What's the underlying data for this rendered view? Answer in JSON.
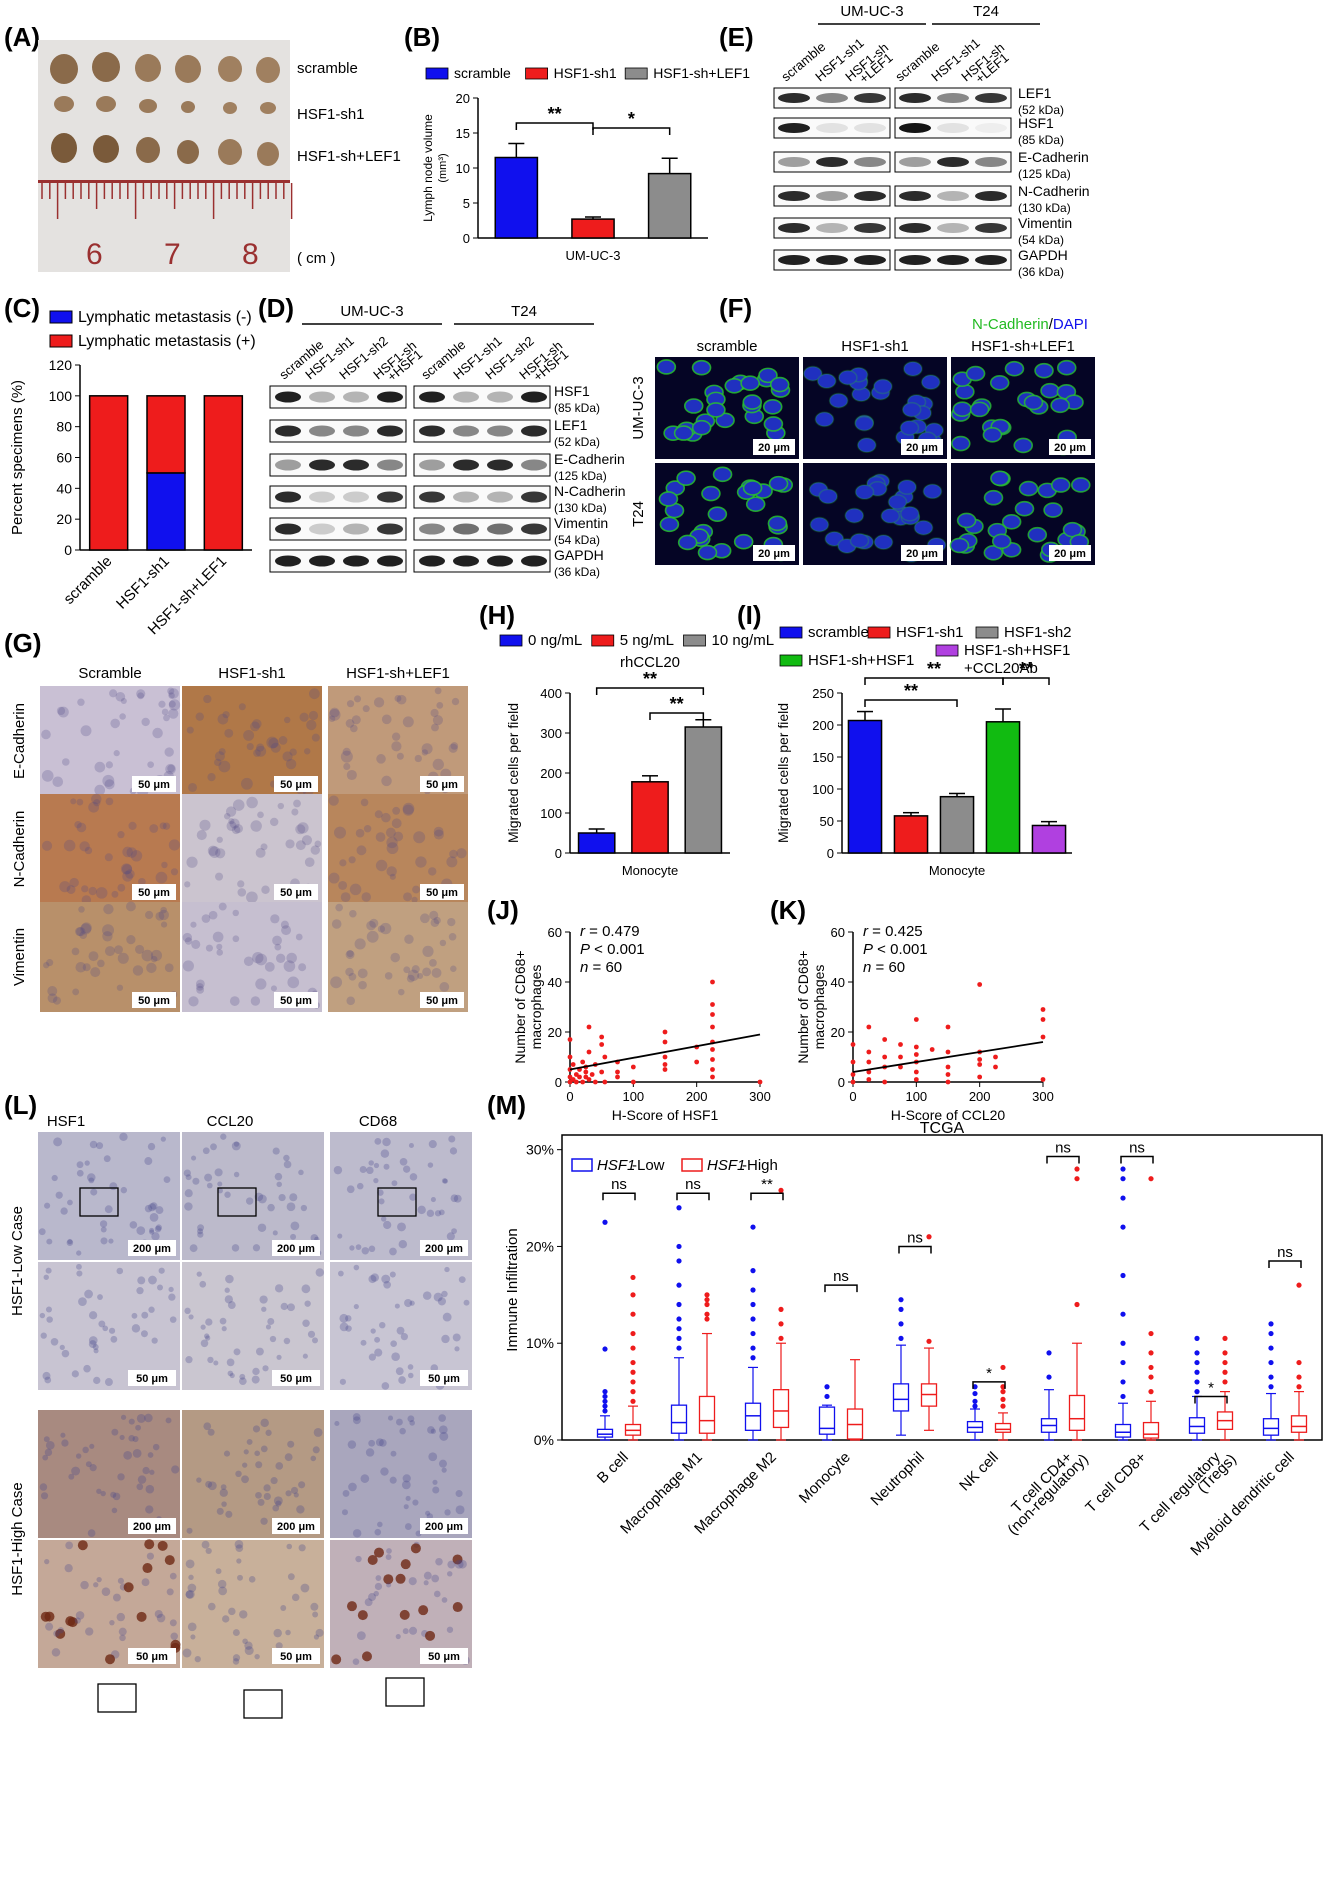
{
  "panel_labels": {
    "A": "(A)",
    "B": "(B)",
    "C": "(C)",
    "D": "(D)",
    "E": "(E)",
    "F": "(F)",
    "G": "(G)",
    "H": "(H)",
    "I": "(I)",
    "J": "(J)",
    "K": "(K)",
    "L": "(L)",
    "M": "(M)"
  },
  "panelA": {
    "rows": [
      "scramble",
      "HSF1-sh1",
      "HSF1-sh+LEF1"
    ],
    "ruler_numbers": [
      "6",
      "7",
      "8"
    ],
    "unit": "( cm )"
  },
  "colors": {
    "blue": "#1010ee",
    "red": "#ee1c1c",
    "gray": "#8c8c8c",
    "green": "#11bb11",
    "purple": "#b040e0"
  },
  "panelE": {
    "groups": [
      "UM-UC-3",
      "T24"
    ],
    "lanes": [
      "scramble",
      "HSF1-sh1",
      "HSF1-sh\n+LEF1",
      "scramble",
      "HSF1-sh1",
      "HSF1-sh\n+LEF1"
    ],
    "bands": [
      [
        "LEF1",
        "(52 kDa)"
      ],
      [
        "HSF1",
        "(85 kDa)"
      ],
      [
        "E-Cadherin",
        "(125 kDa)"
      ],
      [
        "N-Cadherin",
        "(130 kDa)"
      ],
      [
        "Vimentin",
        "(54 kDa)"
      ],
      [
        "GAPDH",
        "(36 kDa)"
      ]
    ]
  },
  "panelD": {
    "groups": [
      "UM-UC-3",
      "T24"
    ],
    "lanes": [
      "scramble",
      "HSF1-sh1",
      "HSF1-sh2",
      "HSF1-sh\n+HSF1",
      "scramble",
      "HSF1-sh1",
      "HSF1-sh2",
      "HSF1-sh\n+HSF1"
    ],
    "bands": [
      [
        "HSF1",
        "(85 kDa)"
      ],
      [
        "LEF1",
        "(52 kDa)"
      ],
      [
        "E-Cadherin",
        "(125 kDa)"
      ],
      [
        "N-Cadherin",
        "(130 kDa)"
      ],
      [
        "Vimentin",
        "(54 kDa)"
      ],
      [
        "GAPDH",
        "(36 kDa)"
      ]
    ]
  },
  "panelF": {
    "title_green": "N-Cadherin",
    "title_sep": "/",
    "title_blue": "DAPI",
    "cols": [
      "scramble",
      "HSF1-sh1",
      "HSF1-sh+LEF1"
    ],
    "rows": [
      "UM-UC-3",
      "T24"
    ],
    "scale": "20 μm"
  },
  "panelG": {
    "cols": [
      "Scramble",
      "HSF1-sh1",
      "HSF1-sh+LEF1"
    ],
    "rows": [
      "E-Cadherin",
      "N-Cadherin",
      "Vimentin"
    ],
    "scale": "50 μm"
  },
  "panelL": {
    "cols": [
      "HSF1",
      "CCL20",
      "CD68"
    ],
    "rows": [
      "HSF1-Low Case",
      "HSF1-High Case"
    ],
    "scale_low": "200 μm",
    "scale_high": "50 μm"
  },
  "chart_data": [
    {
      "id": "B",
      "type": "bar",
      "legend": [
        "scramble",
        "HSF1-sh1",
        "HSF1-sh+LEF1"
      ],
      "categories": [
        "scramble",
        "HSF1-sh1",
        "HSF1-sh+LEF1"
      ],
      "values": [
        11.5,
        2.7,
        9.2
      ],
      "errors": [
        2.0,
        0.3,
        2.2
      ],
      "xlabel": "UM-UC-3",
      "ylabel": "Lymph node volume",
      "ylabel2": "(mm³)",
      "ylim": [
        0,
        20
      ],
      "yticks": [
        0,
        5,
        10,
        15,
        20
      ],
      "significance": [
        {
          "pair": [
            0,
            1
          ],
          "label": "**"
        },
        {
          "pair": [
            1,
            2
          ],
          "label": "*"
        }
      ]
    },
    {
      "id": "C",
      "type": "bar",
      "stacked": true,
      "legend": [
        "Lymphatic metastasis (-)",
        "Lymphatic metastasis (+)"
      ],
      "categories": [
        "scramble",
        "HSF1-sh1",
        "HSF1-sh+LEF1"
      ],
      "series": [
        {
          "name": "Lymphatic metastasis (-)",
          "values": [
            0,
            50,
            0
          ]
        },
        {
          "name": "Lymphatic metastasis (+)",
          "values": [
            100,
            50,
            100
          ]
        }
      ],
      "ylabel": "Percent specimens (%)",
      "ylim": [
        0,
        120
      ],
      "yticks": [
        0,
        20,
        40,
        60,
        80,
        100,
        120
      ]
    },
    {
      "id": "H",
      "type": "bar",
      "legend": [
        "0 ng/mL",
        "5 ng/mL",
        "10 ng/mL"
      ],
      "subtitle": "rhCCL20",
      "categories": [
        "0 ng/mL",
        "5 ng/mL",
        "10 ng/mL"
      ],
      "values": [
        50,
        178,
        315
      ],
      "errors": [
        10,
        15,
        18
      ],
      "xlabel": "Monocyte",
      "ylabel": "Migrated cells per field",
      "ylim": [
        0,
        400
      ],
      "yticks": [
        0,
        100,
        200,
        300,
        400
      ],
      "significance": [
        {
          "pair": [
            0,
            2
          ],
          "label": "**"
        },
        {
          "pair": [
            1,
            2
          ],
          "label": "**"
        }
      ]
    },
    {
      "id": "I",
      "type": "bar",
      "legend": [
        "scramble",
        "HSF1-sh1",
        "HSF1-sh2",
        "HSF1-sh+HSF1",
        "HSF1-sh+HSF1",
        "+CCL20Ab"
      ],
      "categories": [
        "scramble",
        "HSF1-sh1",
        "HSF1-sh2",
        "HSF1-sh+HSF1",
        "HSF1-sh+HSF1+CCL20Ab"
      ],
      "values": [
        207,
        58,
        88,
        205,
        43
      ],
      "errors": [
        14,
        5,
        5,
        20,
        6
      ],
      "xlabel": "Monocyte",
      "ylabel": "Migrated cells per field",
      "ylim": [
        0,
        250
      ],
      "yticks": [
        0,
        50,
        100,
        150,
        200,
        250
      ],
      "significance": [
        {
          "pair": [
            0,
            2
          ],
          "label": "**"
        },
        {
          "pair": [
            0,
            3
          ],
          "label": "**"
        },
        {
          "pair": [
            3,
            4
          ],
          "label": "**"
        }
      ]
    },
    {
      "id": "J",
      "type": "scatter",
      "stats": {
        "r_label": "r",
        "r": " = 0.479",
        "p_label": "P",
        "p": " < 0.001",
        "n_label": "n",
        "n": " = 60"
      },
      "xlabel": "H-Score of HSF1",
      "ylabel": "Number of CD68+",
      "ylabel2": "macrophages",
      "xlim": [
        0,
        300
      ],
      "ylim": [
        0,
        60
      ],
      "xticks": [
        0,
        100,
        200,
        300
      ],
      "yticks": [
        0,
        20,
        40,
        60
      ],
      "points": [
        [
          0,
          17
        ],
        [
          0,
          10
        ],
        [
          0,
          5
        ],
        [
          0,
          2
        ],
        [
          0,
          0
        ],
        [
          5,
          1
        ],
        [
          5,
          7
        ],
        [
          10,
          3
        ],
        [
          10,
          0
        ],
        [
          15,
          2
        ],
        [
          15,
          5
        ],
        [
          20,
          8
        ],
        [
          20,
          0
        ],
        [
          25,
          4
        ],
        [
          25,
          2
        ],
        [
          25,
          6
        ],
        [
          30,
          1
        ],
        [
          30,
          22
        ],
        [
          30,
          12
        ],
        [
          35,
          3
        ],
        [
          40,
          7
        ],
        [
          40,
          0
        ],
        [
          50,
          18
        ],
        [
          50,
          15
        ],
        [
          50,
          4
        ],
        [
          55,
          10
        ],
        [
          55,
          0
        ],
        [
          75,
          8
        ],
        [
          75,
          4
        ],
        [
          75,
          2
        ],
        [
          100,
          0
        ],
        [
          100,
          6
        ],
        [
          150,
          20
        ],
        [
          150,
          16
        ],
        [
          150,
          10
        ],
        [
          150,
          7
        ],
        [
          150,
          5
        ],
        [
          200,
          14
        ],
        [
          200,
          8
        ],
        [
          225,
          40
        ],
        [
          225,
          31
        ],
        [
          225,
          27
        ],
        [
          225,
          22
        ],
        [
          225,
          16
        ],
        [
          225,
          13
        ],
        [
          225,
          9
        ],
        [
          225,
          5
        ],
        [
          225,
          2
        ],
        [
          300,
          0
        ]
      ],
      "fit": [
        [
          0,
          5
        ],
        [
          300,
          19
        ]
      ]
    },
    {
      "id": "K",
      "type": "scatter",
      "stats": {
        "r_label": "r",
        "r": " = 0.425",
        "p_label": "P",
        "p": " < 0.001",
        "n_label": "n",
        "n": " = 60"
      },
      "xlabel": "H-Score of CCL20",
      "ylabel": "Number of CD68+",
      "ylabel2": "macrophages",
      "xlim": [
        0,
        300
      ],
      "ylim": [
        0,
        60
      ],
      "xticks": [
        0,
        100,
        200,
        300
      ],
      "yticks": [
        0,
        20,
        40,
        60
      ],
      "points": [
        [
          0,
          15
        ],
        [
          0,
          8
        ],
        [
          0,
          3
        ],
        [
          0,
          0
        ],
        [
          25,
          22
        ],
        [
          25,
          12
        ],
        [
          25,
          8
        ],
        [
          25,
          4
        ],
        [
          25,
          1
        ],
        [
          50,
          17
        ],
        [
          50,
          10
        ],
        [
          50,
          6
        ],
        [
          50,
          0
        ],
        [
          75,
          15
        ],
        [
          75,
          10
        ],
        [
          75,
          6
        ],
        [
          100,
          25
        ],
        [
          100,
          14
        ],
        [
          100,
          11
        ],
        [
          100,
          8
        ],
        [
          100,
          4
        ],
        [
          100,
          1
        ],
        [
          125,
          13
        ],
        [
          150,
          22
        ],
        [
          150,
          12
        ],
        [
          150,
          6
        ],
        [
          150,
          3
        ],
        [
          150,
          0
        ],
        [
          200,
          39
        ],
        [
          200,
          12
        ],
        [
          200,
          9
        ],
        [
          200,
          7
        ],
        [
          200,
          2
        ],
        [
          225,
          10
        ],
        [
          225,
          6
        ],
        [
          300,
          29
        ],
        [
          300,
          25
        ],
        [
          300,
          18
        ],
        [
          300,
          1
        ]
      ],
      "fit": [
        [
          0,
          4
        ],
        [
          300,
          16
        ]
      ]
    },
    {
      "id": "M",
      "type": "box",
      "title": "TCGA",
      "legend": [
        "HSF1-Low",
        "HSF1-High"
      ],
      "ylabel": "Immune Infiltration",
      "yticks": [
        "0%",
        "10%",
        "20%",
        "30%"
      ],
      "ylim": [
        0,
        0.31
      ],
      "categories": [
        "B cell",
        "Macrophage M1",
        "Macrophage M2",
        "Monocyte",
        "Neutrophil",
        "NK cell",
        "T cell CD4+\n(non-regulatory)",
        "T cell CD8+",
        "T cell regulatory\n(Tregs)",
        "Myeloid dendritic cell"
      ],
      "significance": [
        "ns",
        "ns",
        "**",
        "ns",
        "ns",
        "*",
        "ns",
        "ns",
        "*",
        "ns"
      ],
      "low": [
        {
          "q1": 0.003,
          "med": 0.006,
          "q3": 0.011,
          "wlo": 0,
          "whi": 0.025,
          "out": [
            0.03,
            0.035,
            0.04,
            0.045,
            0.05,
            0.094,
            0.225
          ]
        },
        {
          "q1": 0.007,
          "med": 0.018,
          "q3": 0.036,
          "wlo": 0,
          "whi": 0.085,
          "out": [
            0.095,
            0.105,
            0.115,
            0.125,
            0.14,
            0.16,
            0.185,
            0.2,
            0.24
          ]
        },
        {
          "q1": 0.01,
          "med": 0.025,
          "q3": 0.038,
          "wlo": 0,
          "whi": 0.075,
          "out": [
            0.085,
            0.095,
            0.11,
            0.125,
            0.14,
            0.155,
            0.175,
            0.22
          ]
        },
        {
          "q1": 0.006,
          "med": 0.012,
          "q3": 0.034,
          "wlo": 0,
          "whi": 0.036,
          "out": [
            0.045,
            0.055
          ]
        },
        {
          "q1": 0.03,
          "med": 0.042,
          "q3": 0.058,
          "wlo": 0.005,
          "whi": 0.098,
          "out": [
            0.105,
            0.12,
            0.135,
            0.145
          ]
        },
        {
          "q1": 0.008,
          "med": 0.013,
          "q3": 0.019,
          "wlo": 0,
          "whi": 0.032,
          "out": [
            0.035,
            0.04,
            0.048,
            0.055
          ]
        },
        {
          "q1": 0.008,
          "med": 0.015,
          "q3": 0.022,
          "wlo": 0,
          "whi": 0.052,
          "out": [
            0.065,
            0.09
          ]
        },
        {
          "q1": 0.003,
          "med": 0.008,
          "q3": 0.016,
          "wlo": 0,
          "whi": 0.038,
          "out": [
            0.045,
            0.06,
            0.08,
            0.1,
            0.13,
            0.17,
            0.22,
            0.25,
            0.27,
            0.28
          ]
        },
        {
          "q1": 0.007,
          "med": 0.014,
          "q3": 0.023,
          "wlo": 0,
          "whi": 0.045,
          "out": [
            0.05,
            0.06,
            0.07,
            0.08,
            0.09,
            0.105
          ]
        },
        {
          "q1": 0.005,
          "med": 0.012,
          "q3": 0.022,
          "wlo": 0,
          "whi": 0.048,
          "out": [
            0.055,
            0.065,
            0.08,
            0.095,
            0.11,
            0.12
          ]
        }
      ],
      "high": [
        {
          "q1": 0.005,
          "med": 0.01,
          "q3": 0.016,
          "wlo": 0,
          "whi": 0.035,
          "out": [
            0.04,
            0.05,
            0.06,
            0.07,
            0.08,
            0.095,
            0.11,
            0.13,
            0.15,
            0.168
          ]
        },
        {
          "q1": 0.007,
          "med": 0.02,
          "q3": 0.045,
          "wlo": 0,
          "whi": 0.11,
          "out": [
            0.125,
            0.13,
            0.14,
            0.145,
            0.15
          ]
        },
        {
          "q1": 0.013,
          "med": 0.03,
          "q3": 0.052,
          "wlo": 0,
          "whi": 0.1,
          "out": [
            0.105,
            0.12,
            0.135,
            0.258
          ]
        },
        {
          "q1": 0.001,
          "med": 0.016,
          "q3": 0.032,
          "wlo": 0,
          "whi": 0.083,
          "out": []
        },
        {
          "q1": 0.035,
          "med": 0.047,
          "q3": 0.058,
          "wlo": 0.01,
          "whi": 0.095,
          "out": [
            0.102,
            0.21
          ]
        },
        {
          "q1": 0.008,
          "med": 0.011,
          "q3": 0.017,
          "wlo": 0,
          "whi": 0.028,
          "out": [
            0.035,
            0.042,
            0.05,
            0.055,
            0.075
          ]
        },
        {
          "q1": 0.01,
          "med": 0.022,
          "q3": 0.046,
          "wlo": 0,
          "whi": 0.1,
          "out": [
            0.14,
            0.27,
            0.28
          ]
        },
        {
          "q1": 0.002,
          "med": 0.006,
          "q3": 0.018,
          "wlo": 0,
          "whi": 0.04,
          "out": [
            0.05,
            0.065,
            0.075,
            0.09,
            0.11,
            0.27
          ]
        },
        {
          "q1": 0.011,
          "med": 0.02,
          "q3": 0.029,
          "wlo": 0,
          "whi": 0.05,
          "out": [
            0.06,
            0.07,
            0.08,
            0.09,
            0.105
          ]
        },
        {
          "q1": 0.008,
          "med": 0.014,
          "q3": 0.025,
          "wlo": 0,
          "whi": 0.05,
          "out": [
            0.055,
            0.065,
            0.08,
            0.16
          ]
        }
      ]
    }
  ]
}
